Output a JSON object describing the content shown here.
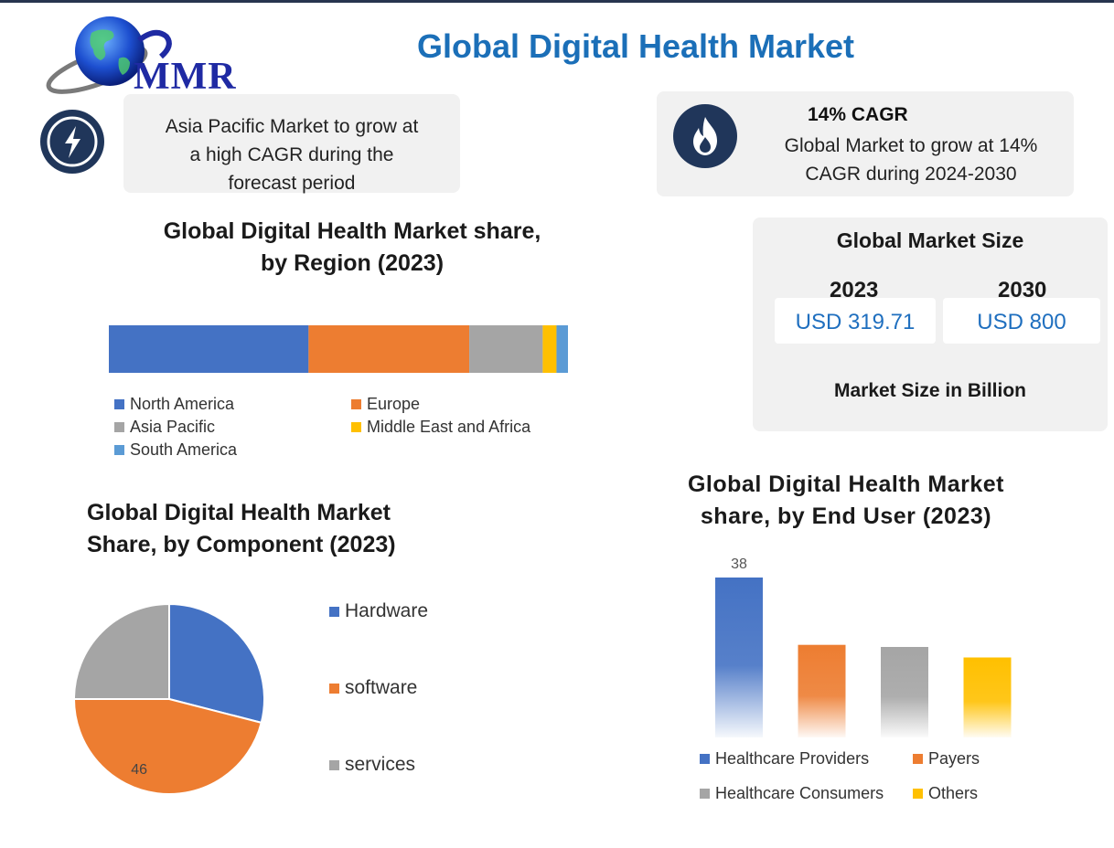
{
  "header": {
    "logo_text": "MMR",
    "title": "Global Digital Health Market"
  },
  "info_left": {
    "icon": "lightning-icon",
    "lines": [
      "Asia Pacific Market to grow at",
      "a high CAGR during the",
      "forecast period"
    ]
  },
  "info_right": {
    "icon": "flame-icon",
    "title": "14% CAGR",
    "lines": [
      "Global Market to grow at 14%",
      "CAGR during 2024-2030"
    ]
  },
  "market_size": {
    "title": "Global Market Size",
    "year1": "2023",
    "value1": "USD 319.71",
    "year2": "2030",
    "value2": "USD 800",
    "footnote": "Market Size in Billion"
  },
  "colors": {
    "title_blue": "#1b6fb8",
    "navy": "#20365a",
    "blue": "#4472c4",
    "orange": "#ed7d31",
    "gray": "#a5a5a5",
    "yellow": "#ffc000",
    "light_blue": "#5b9bd5"
  },
  "chart_data": [
    {
      "type": "bar",
      "orientation": "horizontal-stacked",
      "title": "Global Digital Health Market share,\nby Region (2023)",
      "title_lines": [
        "Global Digital Health Market share,",
        "by Region (2023)"
      ],
      "categories": [
        "2023"
      ],
      "series": [
        {
          "name": "North America",
          "values": [
            43.5
          ],
          "color": "#4472c4"
        },
        {
          "name": "Europe",
          "values": [
            35
          ],
          "color": "#ed7d31"
        },
        {
          "name": "Asia Pacific",
          "values": [
            16
          ],
          "color": "#a5a5a5"
        },
        {
          "name": "Middle East and Africa",
          "values": [
            3
          ],
          "color": "#ffc000"
        },
        {
          "name": "South America",
          "values": [
            2.5
          ],
          "color": "#5b9bd5"
        }
      ],
      "legend": [
        "North America",
        "Europe",
        "Asia Pacific",
        "Middle East and Africa",
        "South America"
      ],
      "legend_position": "bottom"
    },
    {
      "type": "pie",
      "title_lines": [
        "Global Digital Health Market",
        "Share, by Component (2023)"
      ],
      "slices": [
        {
          "name": "Hardware",
          "value": 29,
          "color": "#4472c4",
          "label": ""
        },
        {
          "name": "software",
          "value": 46,
          "color": "#ed7d31",
          "label": "46"
        },
        {
          "name": "services",
          "value": 25,
          "color": "#a5a5a5",
          "label": ""
        }
      ],
      "legend_position": "right"
    },
    {
      "type": "bar",
      "title_lines": [
        "Global Digital Health Market",
        "share, by End User (2023)"
      ],
      "categories": [
        "Healthcare Providers",
        "Payers",
        "Healthcare Consumers",
        "Others"
      ],
      "values": [
        38,
        22,
        21.5,
        19
      ],
      "data_labels": [
        "38",
        "",
        "",
        ""
      ],
      "colors": [
        "#4472c4",
        "#ed7d31",
        "#a5a5a5",
        "#ffc000"
      ],
      "ylim": [
        0,
        38
      ],
      "legend_position": "bottom"
    }
  ]
}
